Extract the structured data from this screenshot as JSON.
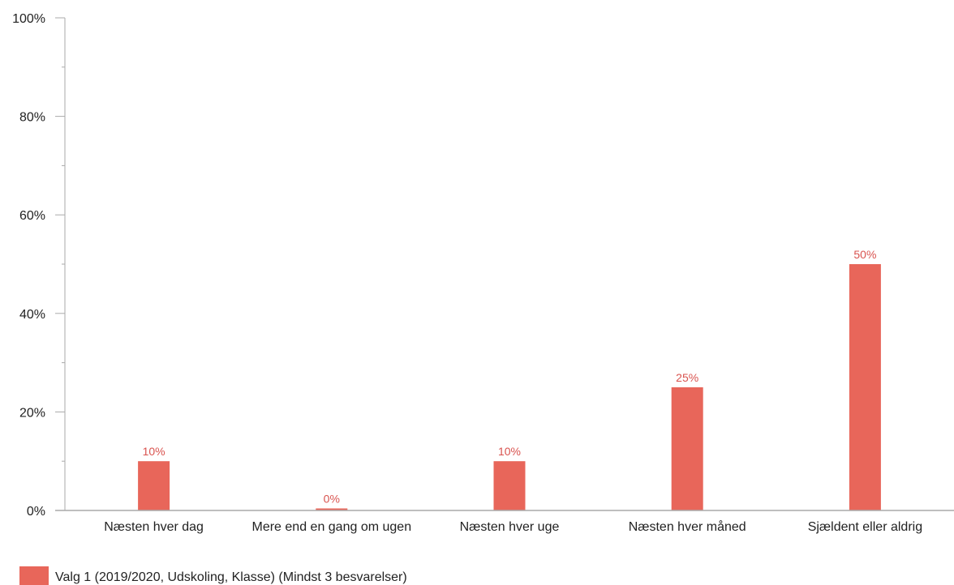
{
  "chart_data": {
    "type": "bar",
    "categories": [
      "Næsten hver dag",
      "Mere end en gang om ugen",
      "Næsten hver uge",
      "Næsten hver måned",
      "Sjældent eller aldrig"
    ],
    "series": [
      {
        "name": "Valg 1 (2019/2020, Udskoling, Klasse) (Mindst 3 besvarelser)",
        "values": [
          10,
          0,
          10,
          25,
          50
        ],
        "data_labels": [
          "10%",
          "0%",
          "10%",
          "25%",
          "50%"
        ],
        "color": "#e8665a"
      }
    ],
    "y_ticks": [
      "0%",
      "20%",
      "40%",
      "60%",
      "80%",
      "100%"
    ],
    "ylim": [
      0,
      100
    ],
    "grid": false,
    "legend_position": "bottom-left",
    "axis_color": "#aaaaaa",
    "data_label_color": "#d9534f"
  }
}
